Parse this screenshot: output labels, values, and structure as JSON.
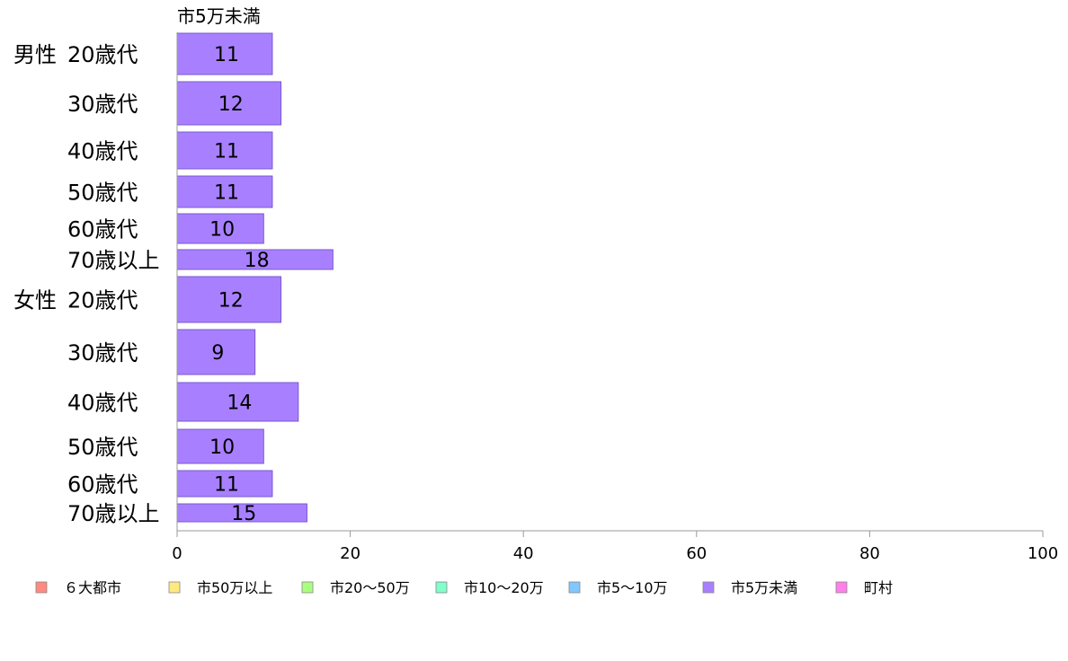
{
  "chart_data": {
    "type": "bar",
    "orientation": "horizontal",
    "series_title": "市5万未満",
    "groups": [
      {
        "label": "男性",
        "categories": [
          "20歳代",
          "30歳代",
          "40歳代",
          "50歳代",
          "60歳代",
          "70歳以上"
        ]
      },
      {
        "label": "女性",
        "categories": [
          "20歳代",
          "30歳代",
          "40歳代",
          "50歳代",
          "60歳代",
          "70歳以上"
        ]
      }
    ],
    "series": [
      {
        "name": "市5万未満",
        "values": [
          11,
          12,
          11,
          11,
          10,
          18,
          12,
          9,
          14,
          10,
          11,
          15
        ]
      }
    ],
    "data_labels": [
      "11",
      "12",
      "11",
      "11",
      "10",
      "18",
      "12",
      "9",
      "14",
      "10",
      "11",
      "15"
    ],
    "xlim": [
      0,
      100
    ],
    "xticks": [
      "0",
      "20",
      "40",
      "60",
      "80",
      "100"
    ],
    "grid": false,
    "legend_position": "bottom",
    "legend": [
      {
        "label": "６大都市",
        "color": "#ff8a80"
      },
      {
        "label": "市50万以上",
        "color": "#ffea80"
      },
      {
        "label": "市20〜50万",
        "color": "#a8ff80"
      },
      {
        "label": "市10〜20万",
        "color": "#80ffcc"
      },
      {
        "label": "市5〜10万",
        "color": "#80c8ff"
      },
      {
        "label": "市5万未満",
        "color": "#a880ff"
      },
      {
        "label": "町村",
        "color": "#ff80ea"
      }
    ],
    "bar_color": "#a880ff",
    "bar_stroke": "#7a58d0"
  }
}
